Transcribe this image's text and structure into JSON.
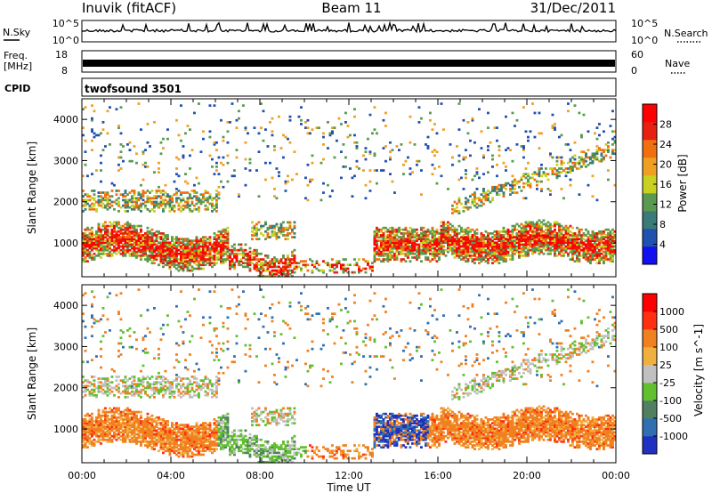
{
  "header": {
    "site": "Inuvik (fitACF)",
    "beam": "Beam 11",
    "date": "31/Dec/2011"
  },
  "noise_panel": {
    "left_label": "N.Sky",
    "left_ticks": [
      "10^5",
      "10^0"
    ],
    "right_label": "N.Search",
    "right_ticks": [
      "10^5",
      "10^0"
    ]
  },
  "freq_panel": {
    "left_label_1": "Freq.",
    "left_label_2": "[MHz]",
    "left_ticks": [
      "18",
      "8"
    ],
    "right_label": "Nave",
    "right_ticks": [
      "60",
      "0"
    ]
  },
  "cpid_panel": {
    "label": "CPID",
    "value": "twofsound 3501"
  },
  "colors": {
    "power_scale": [
      "#1010f0",
      "#2050b0",
      "#3a7a78",
      "#5a9a50",
      "#c8d020",
      "#f0a020",
      "#f07010",
      "#e82010",
      "#ff0000"
    ],
    "velocity_scale": [
      "#2030c0",
      "#3070b0",
      "#508060",
      "#60c030",
      "#c0c0c0",
      "#f0b040",
      "#f08020",
      "#ff3010",
      "#ff0000"
    ]
  },
  "chart_data": [
    {
      "type": "heatmap",
      "name": "power-panel",
      "ylabel": "Slant Range [km]",
      "yticks": [
        "4000",
        "3000",
        "2000",
        "1000"
      ],
      "ylim": [
        180,
        4500
      ],
      "xticks": [
        "00:00",
        "04:00",
        "08:00",
        "12:00",
        "16:00",
        "20:00",
        "00:00"
      ],
      "xlim_hours": [
        0,
        24
      ],
      "colorbar": {
        "label": "Power [dB]",
        "ticks": [
          "28",
          "24",
          "20",
          "16",
          "12",
          "8",
          "4"
        ],
        "range": [
          0,
          30
        ]
      }
    },
    {
      "type": "heatmap",
      "name": "velocity-panel",
      "ylabel": "Slant Range [km]",
      "yticks": [
        "4000",
        "3000",
        "2000",
        "1000"
      ],
      "ylim": [
        180,
        4500
      ],
      "xticks": [
        "00:00",
        "04:00",
        "08:00",
        "12:00",
        "16:00",
        "20:00",
        "00:00"
      ],
      "xlim_hours": [
        0,
        24
      ],
      "xlabel": "Time UT",
      "colorbar": {
        "label": "Velocity [m s^-1]",
        "ticks": [
          "1000",
          "500",
          "100",
          "25",
          "-25",
          "-100",
          "-500",
          "-1000"
        ],
        "range": [
          -1000,
          1000
        ]
      }
    }
  ]
}
